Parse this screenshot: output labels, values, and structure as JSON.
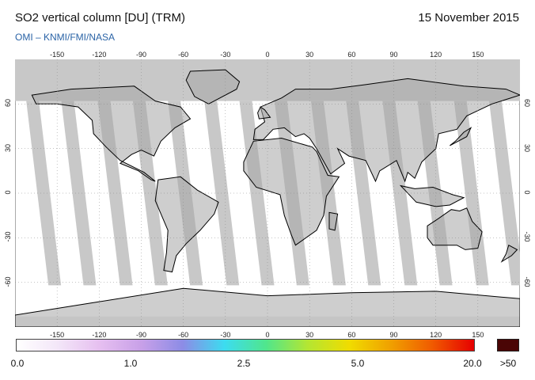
{
  "header": {
    "title": "SO2 vertical column [DU] (TRM)",
    "date": "15 November 2015",
    "credit": "OMI  –  KNMI/FMI/NASA"
  },
  "map": {
    "lon_ticks": [
      "-150",
      "-120",
      "-90",
      "-60",
      "-30",
      "0",
      "30",
      "60",
      "90",
      "120",
      "150"
    ],
    "lat_ticks": [
      "60",
      "30",
      "0",
      "-30",
      "-60"
    ],
    "lon_range": [
      -180,
      180
    ],
    "lat_range": [
      -90,
      90
    ],
    "no_data_color": "#c8c8c8",
    "land_color": "#a6a6a6",
    "coastline_color": "#000000"
  },
  "colorbar": {
    "labels": [
      "0.0",
      "1.0",
      "2.5",
      "5.0",
      "20.0"
    ],
    "overflow_label": ">50",
    "overflow_color": "#4a0505",
    "gradient_colors": [
      "#ffffff",
      "#f3e6f8",
      "#e6bff0",
      "#c8a0e8",
      "#8c8ce6",
      "#3cdcf0",
      "#50e68c",
      "#b4e632",
      "#f0dc00",
      "#f0a000",
      "#f05a00",
      "#e60000"
    ]
  }
}
